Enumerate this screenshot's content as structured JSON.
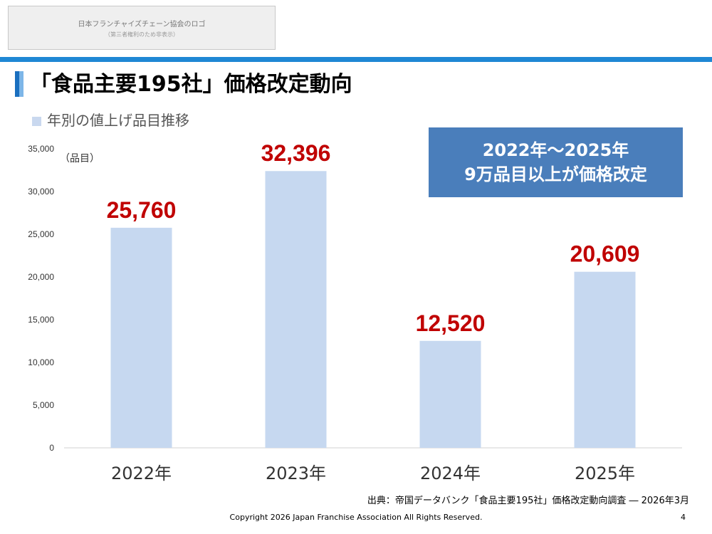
{
  "logo": {
    "line1": "日本フランチャイズチェーン協会のロゴ",
    "line2": "（第三者権利のため非表示）"
  },
  "slide": {
    "title": "「食品主要195社」価格改定動向",
    "page_number": "4"
  },
  "legend": {
    "label": "年別の値上げ品目推移",
    "color": "#c9d8ef"
  },
  "callout": {
    "line1": "2022年～2025年",
    "line2": "9万品目以上が価格改定",
    "bg": "#4a7ebb"
  },
  "footer": {
    "source": "出典：帝国データバンク「食品主要195社」価格改定動向調査 ― 2026年3月",
    "copyright": "Copyright 2026 Japan Franchise Association All Rights Reserved."
  },
  "chart_data": {
    "type": "bar",
    "categories": [
      "2022年",
      "2023年",
      "2024年",
      "2025年"
    ],
    "values": [
      25760,
      32396,
      12520,
      20609
    ],
    "value_labels": [
      "25,760",
      "32,396",
      "12,520",
      "20,609"
    ],
    "yticks": [
      "0",
      "5,000",
      "10,000",
      "15,000",
      "20,000",
      "25,000",
      "30,000",
      "35,000"
    ],
    "ylim": [
      0,
      35000
    ],
    "ylabel": "（品目）",
    "bar_color": "#c6d8f0",
    "label_color": "#c00000",
    "grid": false
  }
}
